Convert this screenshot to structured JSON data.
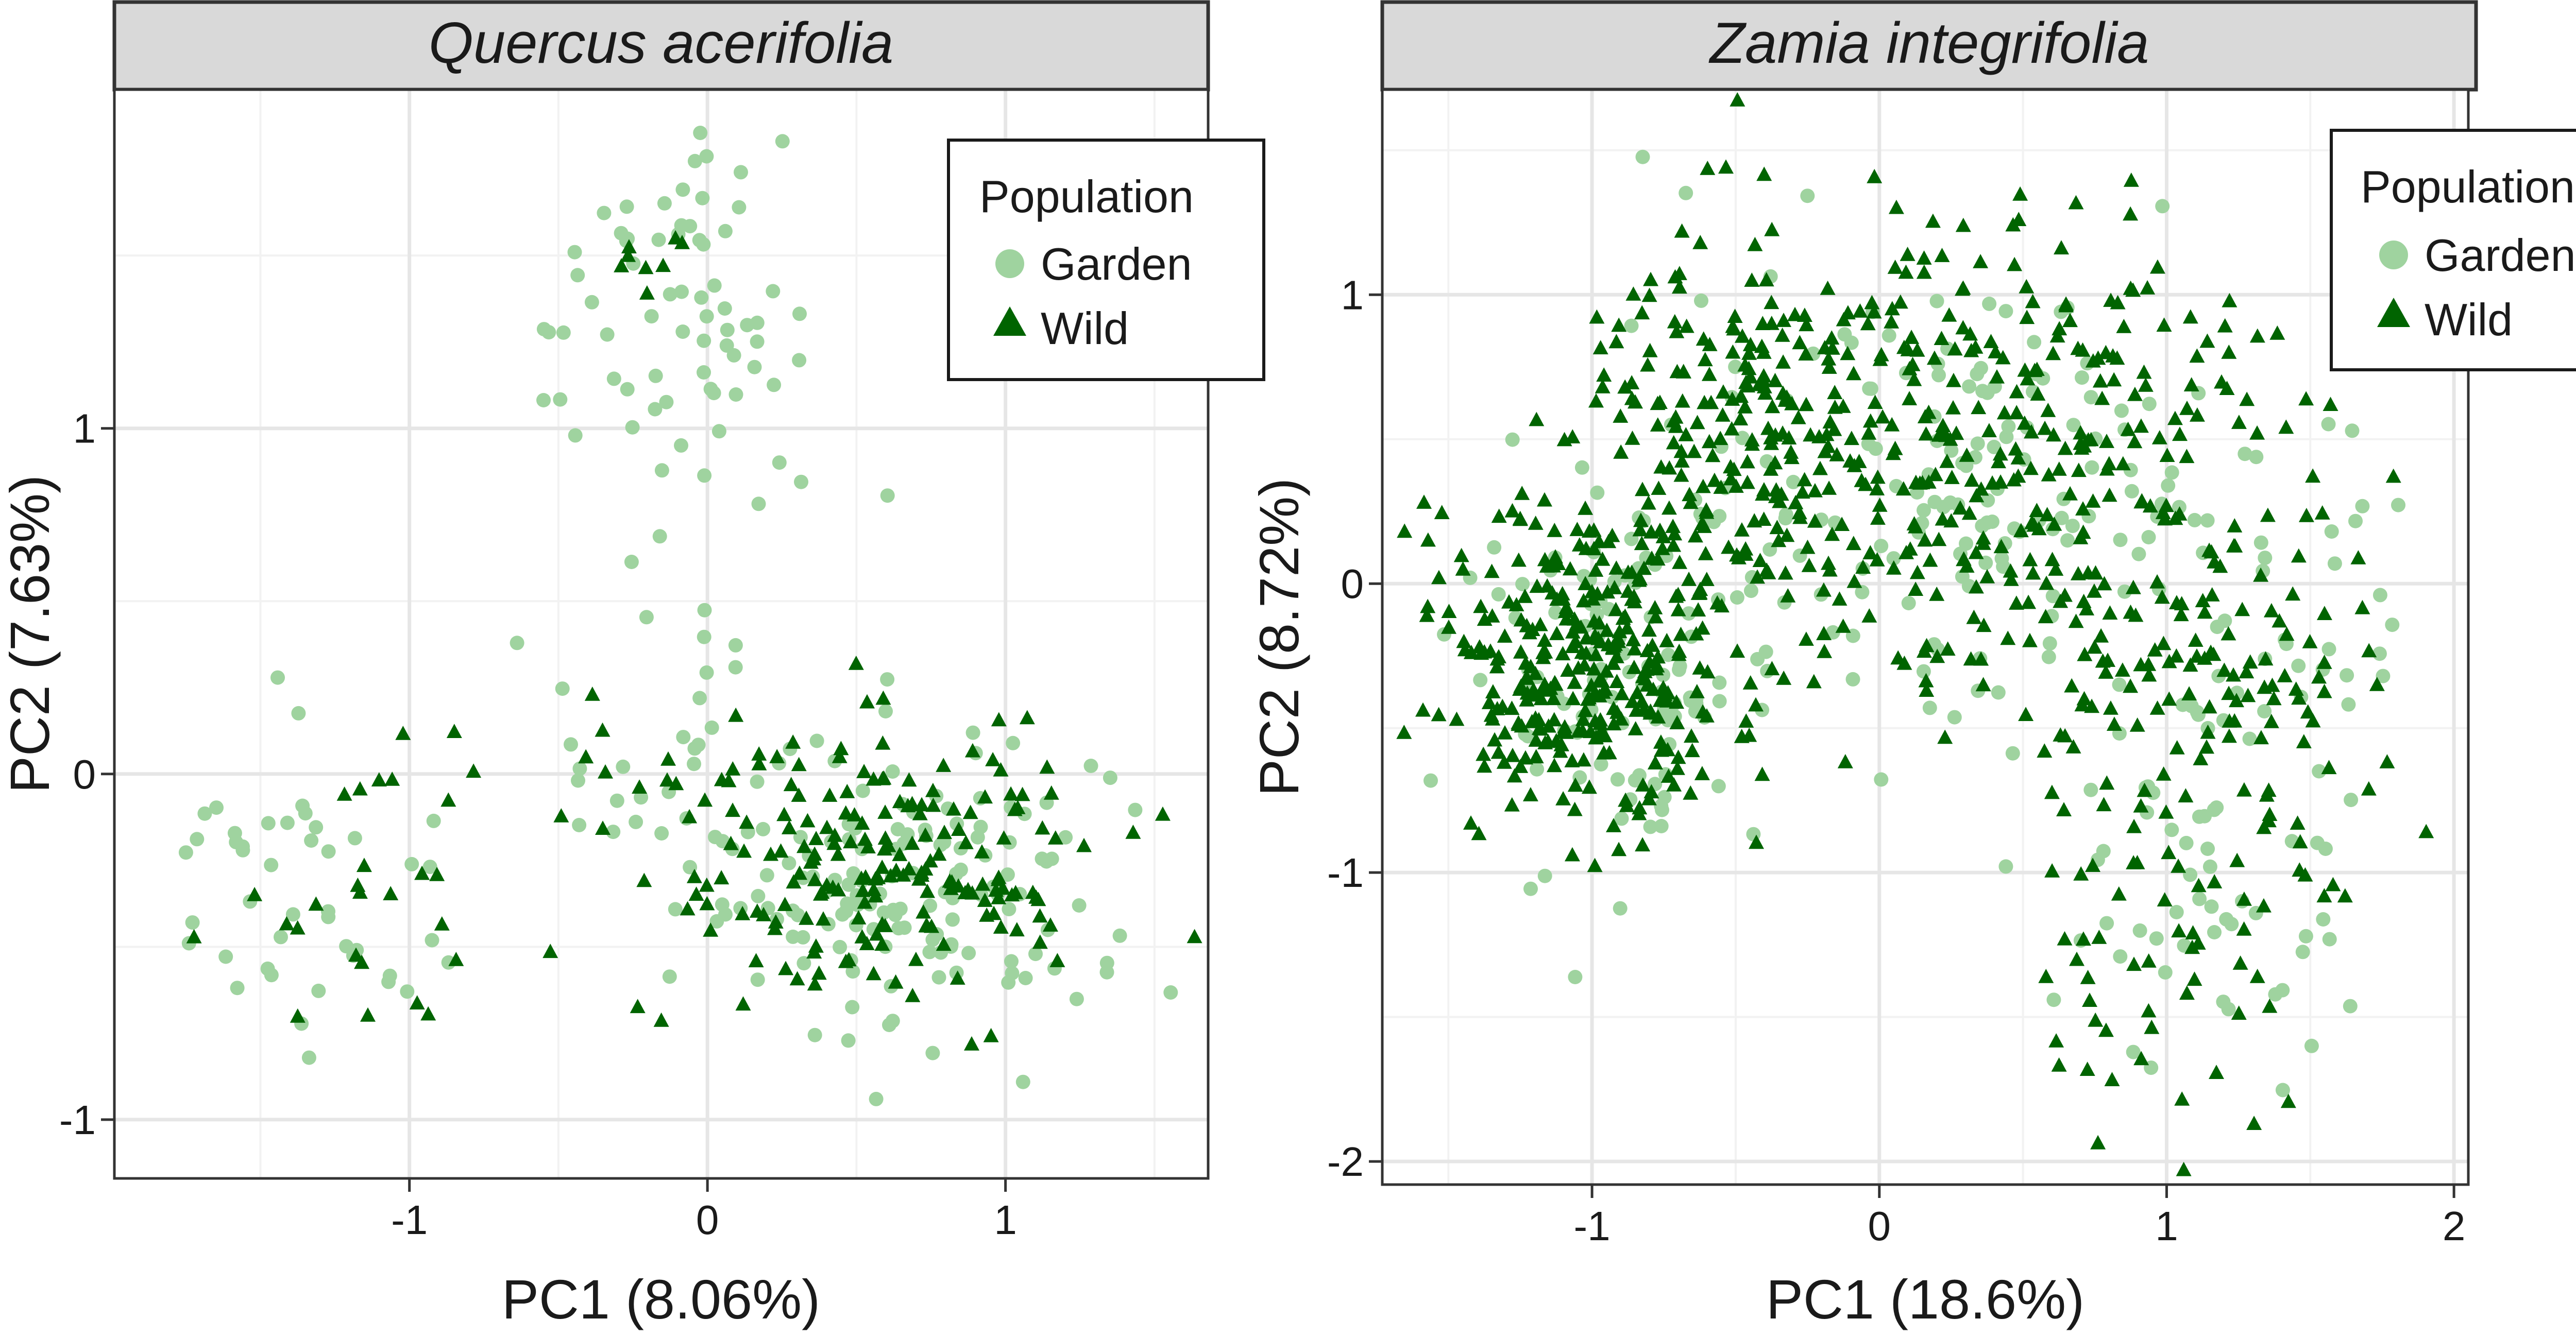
{
  "colors": {
    "garden": "#9fd39f",
    "wild": "#006400",
    "strip_fill": "#d9d9d9",
    "grid_major": "#e6e6e6",
    "grid_minor": "#f2f2f2",
    "panel_border": "#333333"
  },
  "chart_data": [
    {
      "type": "scatter",
      "title": "Quercus acerifolia",
      "xlabel": "PC1 (8.06%)",
      "ylabel": "PC2 (7.63%)",
      "xlim": [
        -1.99,
        1.68
      ],
      "ylim": [
        -1.17,
        1.98
      ],
      "x_ticks": [
        -1,
        0,
        1
      ],
      "x_tick_labels": [
        "-1",
        "0",
        "1"
      ],
      "y_ticks": [
        -1,
        0,
        1
      ],
      "y_tick_labels": [
        "-1",
        "0",
        "1"
      ],
      "grid": true,
      "legend": {
        "title": "Population",
        "placement": "top-right",
        "entries": [
          {
            "label": "Garden",
            "shape": "circle"
          },
          {
            "label": "Wild",
            "shape": "triangle"
          }
        ]
      },
      "series": [
        {
          "name": "Garden",
          "shape": "circle",
          "clusters": [
            {
              "cx": -0.05,
              "cy": 1.35,
              "sx": 0.22,
              "sy": 0.3,
              "n": 70,
              "seed": 11
            },
            {
              "cx": -1.35,
              "cy": -0.35,
              "sx": 0.22,
              "sy": 0.22,
              "n": 45,
              "seed": 12
            },
            {
              "cx": 0.65,
              "cy": -0.3,
              "sx": 0.4,
              "sy": 0.22,
              "n": 150,
              "seed": 13
            },
            {
              "cx": -0.2,
              "cy": 0.3,
              "sx": 0.25,
              "sy": 0.3,
              "n": 22,
              "seed": 14
            }
          ]
        },
        {
          "name": "Wild",
          "shape": "triangle",
          "clusters": [
            {
              "cx": 0.55,
              "cy": -0.25,
              "sx": 0.35,
              "sy": 0.22,
              "n": 190,
              "seed": 21
            },
            {
              "cx": -1.2,
              "cy": -0.35,
              "sx": 0.2,
              "sy": 0.22,
              "n": 25,
              "seed": 22
            },
            {
              "cx": -0.15,
              "cy": 1.45,
              "sx": 0.08,
              "sy": 0.05,
              "n": 8,
              "seed": 23
            },
            {
              "cx": -0.35,
              "cy": -0.35,
              "sx": 0.25,
              "sy": 0.35,
              "n": 15,
              "seed": 24
            }
          ]
        }
      ]
    },
    {
      "type": "scatter",
      "title": "Zamia integrifolia",
      "xlabel": "PC1 (18.6%)",
      "ylabel": "PC2 (8.72%)",
      "xlim": [
        -1.73,
        2.05
      ],
      "ylim": [
        -2.08,
        1.71
      ],
      "x_ticks": [
        -1,
        0,
        1,
        2
      ],
      "x_tick_labels": [
        "-1",
        "0",
        "1",
        "2"
      ],
      "y_ticks": [
        -2,
        -1,
        0,
        1
      ],
      "y_tick_labels": [
        "-2",
        "-1",
        "0",
        "1"
      ],
      "grid": true,
      "legend": {
        "title": "Population",
        "placement": "top-right",
        "entries": [
          {
            "label": "Garden",
            "shape": "circle"
          },
          {
            "label": "Wild",
            "shape": "triangle"
          }
        ]
      },
      "series": [
        {
          "name": "Garden",
          "shape": "circle",
          "clusters": [
            {
              "cx": -0.95,
              "cy": -0.3,
              "sx": 0.3,
              "sy": 0.35,
              "n": 110,
              "seed": 31
            },
            {
              "cx": 0.3,
              "cy": 0.35,
              "sx": 0.45,
              "sy": 0.45,
              "n": 150,
              "seed": 32
            },
            {
              "cx": 1.2,
              "cy": -0.9,
              "sx": 0.25,
              "sy": 0.45,
              "n": 60,
              "seed": 33
            },
            {
              "cx": 1.4,
              "cy": -0.2,
              "sx": 0.25,
              "sy": 0.3,
              "n": 30,
              "seed": 34
            }
          ]
        },
        {
          "name": "Wild",
          "shape": "triangle",
          "clusters": [
            {
              "cx": -1.0,
              "cy": -0.3,
              "sx": 0.25,
              "sy": 0.28,
              "n": 330,
              "seed": 41
            },
            {
              "cx": -0.5,
              "cy": 0.55,
              "sx": 0.3,
              "sy": 0.35,
              "n": 180,
              "seed": 42
            },
            {
              "cx": 0.4,
              "cy": 0.45,
              "sx": 0.5,
              "sy": 0.45,
              "n": 330,
              "seed": 43
            },
            {
              "cx": 1.15,
              "cy": -0.4,
              "sx": 0.3,
              "sy": 0.45,
              "n": 130,
              "seed": 44
            },
            {
              "cx": 1.0,
              "cy": -1.45,
              "sx": 0.22,
              "sy": 0.25,
              "n": 35,
              "seed": 45
            }
          ]
        }
      ]
    }
  ]
}
